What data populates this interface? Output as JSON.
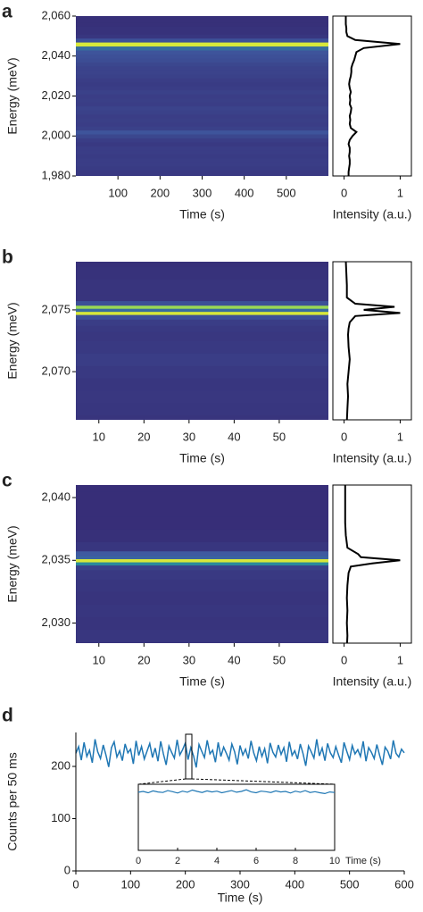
{
  "chart_data": [
    {
      "type": "heatmap-spectrum",
      "label": "a",
      "ylabel": "Energy (meV)",
      "xlabel": "Time (s)",
      "xlim": [
        0,
        600
      ],
      "xticks": [
        100,
        200,
        300,
        400,
        500
      ],
      "ylim": [
        1980,
        2060
      ],
      "yticks": [
        {
          "value": 1980,
          "label": "1,980"
        },
        {
          "value": 2000,
          "label": "2,000"
        },
        {
          "value": 2020,
          "label": "2,020"
        },
        {
          "value": 2040,
          "label": "2,040"
        },
        {
          "value": 2060,
          "label": "2,060"
        }
      ],
      "colormap": [
        "#362a74",
        "#3f5aa0",
        "#2a8a9b",
        "#3cc07a",
        "#d8e83a"
      ],
      "spectrum": {
        "xlabel": "Intensity (a.u.)",
        "xlim": [
          -0.2,
          1.2
        ],
        "xticks": [
          0,
          1
        ],
        "color": "#000000",
        "energy": [
          1980,
          1982,
          1984,
          1986,
          1988,
          1990,
          1992,
          1994,
          1996,
          1998,
          2000,
          2002,
          2004,
          2006,
          2008,
          2010,
          2012,
          2014,
          2016,
          2018,
          2020,
          2022,
          2024,
          2026,
          2028,
          2030,
          2032,
          2034,
          2036,
          2038,
          2040,
          2042,
          2044,
          2046,
          2048,
          2050,
          2052,
          2054,
          2056,
          2058,
          2060
        ],
        "intensity": [
          0.08,
          0.08,
          0.09,
          0.1,
          0.1,
          0.09,
          0.1,
          0.1,
          0.08,
          0.1,
          0.15,
          0.22,
          0.12,
          0.1,
          0.11,
          0.1,
          0.12,
          0.13,
          0.1,
          0.11,
          0.1,
          0.12,
          0.1,
          0.09,
          0.1,
          0.12,
          0.13,
          0.13,
          0.15,
          0.18,
          0.2,
          0.22,
          0.35,
          1,
          0.2,
          0.06,
          0.04,
          0.04,
          0.03,
          0.03,
          0.03
        ]
      }
    },
    {
      "type": "heatmap-spectrum",
      "label": "b",
      "ylabel": "Energy (meV)",
      "xlabel": "Time (s)",
      "xlim": [
        4.9,
        60.9
      ],
      "xticks": [
        10,
        20,
        30,
        40,
        50
      ],
      "ylim": [
        2066.1,
        2078.9
      ],
      "yticks": [
        {
          "value": 2070,
          "label": "2,070"
        },
        {
          "value": 2075,
          "label": "2,075"
        }
      ],
      "colormap": [
        "#362a74",
        "#3f5aa0",
        "#2a8a9b",
        "#3cc07a",
        "#d8e83a"
      ],
      "spectrum": {
        "xlabel": "Intensity (a.u.)",
        "xlim": [
          -0.2,
          1.2
        ],
        "xticks": [
          0,
          1
        ],
        "color": "#000000",
        "energy": [
          2066,
          2067,
          2068,
          2069,
          2070,
          2071,
          2072,
          2073,
          2073.5,
          2074,
          2074.5,
          2074.75,
          2075,
          2075.25,
          2075.5,
          2076,
          2076.5,
          2077,
          2078,
          2079
        ],
        "intensity": [
          0.05,
          0.06,
          0.07,
          0.06,
          0.08,
          0.1,
          0.08,
          0.07,
          0.08,
          0.1,
          0.2,
          1,
          0.35,
          0.9,
          0.2,
          0.05,
          0.05,
          0.05,
          0.04,
          0.03
        ]
      }
    },
    {
      "type": "heatmap-spectrum",
      "label": "c",
      "ylabel": "Energy (meV)",
      "xlabel": "Time (s)",
      "xlim": [
        4.9,
        60.9
      ],
      "xticks": [
        10,
        20,
        30,
        40,
        50
      ],
      "ylim": [
        2028.4,
        2041
      ],
      "yticks": [
        {
          "value": 2030,
          "label": "2,030"
        },
        {
          "value": 2035,
          "label": "2,035"
        },
        {
          "value": 2040,
          "label": "2,040"
        }
      ],
      "colormap": [
        "#362a74",
        "#3f5aa0",
        "#2a8a9b",
        "#3cc07a",
        "#d8e83a"
      ],
      "spectrum": {
        "xlabel": "Intensity (a.u.)",
        "xlim": [
          -0.2,
          1.2
        ],
        "xticks": [
          0,
          1
        ],
        "color": "#000000",
        "energy": [
          2028,
          2029,
          2030,
          2031,
          2032,
          2033,
          2034,
          2034.5,
          2034.75,
          2035,
          2035.25,
          2035.5,
          2036,
          2037,
          2038,
          2039,
          2040,
          2041
        ],
        "intensity": [
          0.05,
          0.06,
          0.05,
          0.06,
          0.05,
          0.06,
          0.08,
          0.12,
          0.5,
          1,
          0.3,
          0.25,
          0.06,
          0.03,
          0.02,
          0.02,
          0.02,
          0.02
        ]
      }
    },
    {
      "type": "line",
      "label": "d",
      "ylabel": "Counts per 50 ms",
      "xlabel": "Time (s)",
      "color": "#1f77b4",
      "xlim": [
        0,
        600
      ],
      "xticks": [
        0,
        100,
        200,
        300,
        400,
        500,
        600
      ],
      "ylim": [
        0,
        265
      ],
      "yticks": [
        0,
        100,
        200
      ],
      "x": [
        0,
        5,
        10,
        15,
        20,
        25,
        30,
        35,
        40,
        45,
        50,
        55,
        60,
        65,
        70,
        75,
        80,
        85,
        90,
        95,
        100,
        105,
        110,
        115,
        120,
        125,
        130,
        135,
        140,
        145,
        150,
        155,
        160,
        165,
        170,
        175,
        180,
        185,
        190,
        195,
        200,
        205,
        210,
        215,
        220,
        225,
        230,
        235,
        240,
        245,
        250,
        255,
        260,
        265,
        270,
        275,
        280,
        285,
        290,
        295,
        300,
        305,
        310,
        315,
        320,
        325,
        330,
        335,
        340,
        345,
        350,
        355,
        360,
        365,
        370,
        375,
        380,
        385,
        390,
        395,
        400,
        405,
        410,
        415,
        420,
        425,
        430,
        435,
        440,
        445,
        450,
        455,
        460,
        465,
        470,
        475,
        480,
        485,
        490,
        495,
        500,
        505,
        510,
        515,
        520,
        525,
        530,
        535,
        540,
        545,
        550,
        555,
        560,
        565,
        570,
        575,
        580,
        585,
        590,
        595,
        600
      ],
      "values": [
        225,
        238,
        212,
        246,
        219,
        231,
        207,
        252,
        228,
        215,
        241,
        222,
        199,
        236,
        247,
        218,
        230,
        211,
        243,
        226,
        233,
        205,
        249,
        221,
        238,
        214,
        229,
        244,
        217,
        235,
        210,
        248,
        224,
        203,
        239,
        227,
        216,
        251,
        222,
        232,
        245,
        213,
        236,
        220,
        198,
        242,
        229,
        217,
        250,
        224,
        231,
        208,
        246,
        219,
        237,
        225,
        212,
        243,
        228,
        204,
        240,
        222,
        233,
        215,
        249,
        226,
        211,
        238,
        219,
        234,
        206,
        245,
        227,
        218,
        241,
        223,
        236,
        209,
        247,
        221,
        230,
        214,
        243,
        225,
        201,
        239,
        228,
        216,
        252,
        220,
        235,
        211,
        244,
        226,
        217,
        238,
        222,
        207,
        246,
        229,
        213,
        240,
        224,
        232,
        219,
        248,
        210,
        236,
        227,
        215,
        242,
        221,
        203,
        237,
        229,
        214,
        250,
        225,
        218,
        233,
        226
      ],
      "inset": {
        "xlabel": "Time (s)",
        "xlim": [
          0,
          10
        ],
        "xticks": [
          0,
          2,
          4,
          6,
          8,
          10
        ],
        "ylim": [
          0,
          250
        ],
        "x": [
          0,
          0.25,
          0.5,
          0.75,
          1,
          1.25,
          1.5,
          1.75,
          2,
          2.25,
          2.5,
          2.75,
          3,
          3.25,
          3.5,
          3.75,
          4,
          4.25,
          4.5,
          4.75,
          5,
          5.25,
          5.5,
          5.75,
          6,
          6.25,
          6.5,
          6.75,
          7,
          7.25,
          7.5,
          7.75,
          8,
          8.25,
          8.5,
          8.75,
          9,
          9.25,
          9.5,
          9.75,
          10
        ],
        "values": [
          220,
          223,
          218,
          225,
          221,
          219,
          226,
          222,
          217,
          224,
          220,
          228,
          223,
          219,
          225,
          221,
          224,
          218,
          222,
          226,
          220,
          223,
          229,
          221,
          218,
          224,
          222,
          219,
          225,
          221,
          223,
          217,
          224,
          220,
          226,
          219,
          222,
          218,
          215,
          221,
          219
        ]
      }
    }
  ]
}
